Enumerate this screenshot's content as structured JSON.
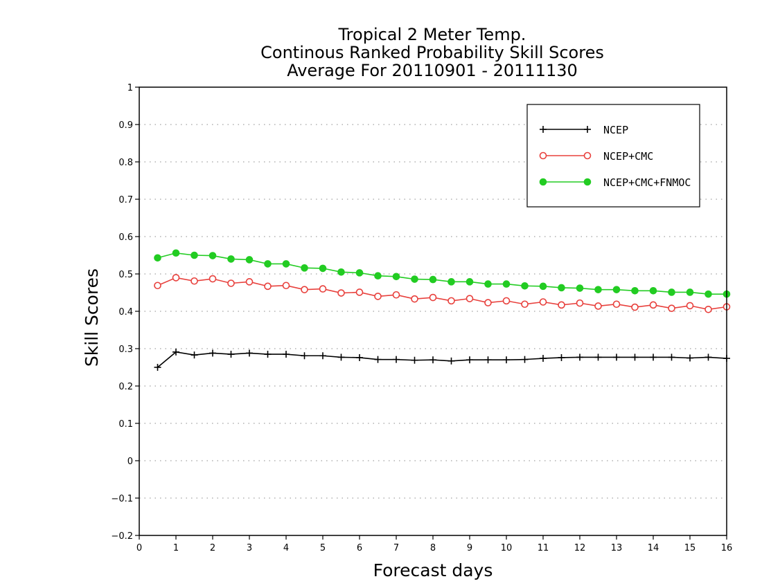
{
  "chart_data": {
    "type": "line",
    "title": [
      "Tropical 2 Meter Temp.",
      "Continous Ranked Probability Skill Scores",
      "Average For 20110901 - 20111130"
    ],
    "xlabel": "Forecast days",
    "ylabel": "Skill Scores",
    "xlim": [
      0,
      16
    ],
    "ylim": [
      -0.2,
      1
    ],
    "xticks": [
      0,
      1,
      2,
      3,
      4,
      5,
      6,
      7,
      8,
      9,
      10,
      11,
      12,
      13,
      14,
      15,
      16
    ],
    "yticks": [
      -0.2,
      -0.1,
      0,
      0.1,
      0.2,
      0.3,
      0.4,
      0.5,
      0.6,
      0.7,
      0.8,
      0.9,
      1
    ],
    "ytick_labels": [
      "−0.2",
      "−0.1",
      "0",
      "0.1",
      "0.2",
      "0.3",
      "0.4",
      "0.5",
      "0.6",
      "0.7",
      "0.8",
      "0.9",
      "1"
    ],
    "grid": "horizontal dotted",
    "legend_position": "top-right",
    "x": [
      0.5,
      1,
      1.5,
      2,
      2.5,
      3,
      3.5,
      4,
      4.5,
      5,
      5.5,
      6,
      6.5,
      7,
      7.5,
      8,
      8.5,
      9,
      9.5,
      10,
      10.5,
      11,
      11.5,
      12,
      12.5,
      13,
      13.5,
      14,
      14.5,
      15,
      15.5,
      16
    ],
    "series": [
      {
        "name": "NCEP",
        "color": "#000000",
        "marker": "plus",
        "values": [
          0.25,
          0.291,
          0.283,
          0.288,
          0.285,
          0.288,
          0.285,
          0.285,
          0.281,
          0.281,
          0.277,
          0.276,
          0.271,
          0.271,
          0.269,
          0.27,
          0.267,
          0.27,
          0.27,
          0.27,
          0.271,
          0.274,
          0.276,
          0.277,
          0.277,
          0.277,
          0.277,
          0.277,
          0.277,
          0.275,
          0.277,
          0.274
        ]
      },
      {
        "name": "NCEP+CMC",
        "color": "#e8403c",
        "marker": "open-circle",
        "values": [
          0.469,
          0.49,
          0.481,
          0.487,
          0.475,
          0.479,
          0.467,
          0.469,
          0.458,
          0.46,
          0.449,
          0.451,
          0.44,
          0.444,
          0.433,
          0.437,
          0.428,
          0.434,
          0.423,
          0.428,
          0.419,
          0.425,
          0.417,
          0.422,
          0.414,
          0.419,
          0.411,
          0.417,
          0.408,
          0.415,
          0.405,
          0.412
        ]
      },
      {
        "name": "NCEP+CMC+FNMOC",
        "color": "#22cc22",
        "marker": "filled-circle",
        "values": [
          0.543,
          0.556,
          0.55,
          0.549,
          0.54,
          0.538,
          0.527,
          0.527,
          0.516,
          0.515,
          0.505,
          0.503,
          0.495,
          0.493,
          0.486,
          0.485,
          0.479,
          0.479,
          0.473,
          0.473,
          0.468,
          0.467,
          0.463,
          0.462,
          0.458,
          0.458,
          0.455,
          0.455,
          0.451,
          0.451,
          0.446,
          0.446
        ]
      }
    ]
  }
}
